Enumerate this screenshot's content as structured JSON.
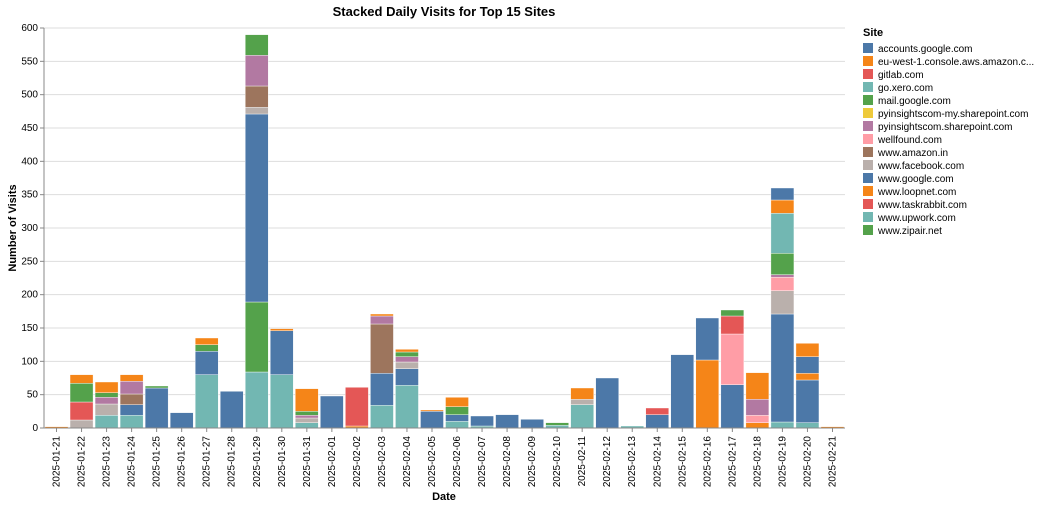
{
  "chart_data": {
    "type": "bar",
    "stacked": true,
    "title": "Stacked Daily Visits for Top 15 Sites",
    "xlabel": "Date",
    "ylabel": "Number of Visits",
    "ylim": [
      0,
      600
    ],
    "yticks": [
      0,
      50,
      100,
      150,
      200,
      250,
      300,
      350,
      400,
      450,
      500,
      550,
      600
    ],
    "grid": true,
    "legend": {
      "title": "Site",
      "placement": "right"
    },
    "categories": [
      "2025-01-21",
      "2025-01-22",
      "2025-01-23",
      "2025-01-24",
      "2025-01-25",
      "2025-01-26",
      "2025-01-27",
      "2025-01-28",
      "2025-01-29",
      "2025-01-30",
      "2025-01-31",
      "2025-02-01",
      "2025-02-02",
      "2025-02-03",
      "2025-02-04",
      "2025-02-05",
      "2025-02-06",
      "2025-02-07",
      "2025-02-08",
      "2025-02-09",
      "2025-02-10",
      "2025-02-11",
      "2025-02-12",
      "2025-02-13",
      "2025-02-14",
      "2025-02-15",
      "2025-02-16",
      "2025-02-17",
      "2025-02-18",
      "2025-02-19",
      "2025-02-20",
      "2025-02-21"
    ],
    "series": [
      {
        "name": "www.upwork.com",
        "color": "#72b7b2",
        "values": [
          0,
          0,
          19,
          19,
          0,
          0,
          80,
          0,
          84,
          80,
          8,
          0,
          0,
          34,
          64,
          0,
          10,
          3,
          0,
          0,
          4,
          35,
          0,
          3,
          0,
          0,
          0,
          0,
          0,
          9,
          8,
          0
        ]
      },
      {
        "name": "www.zipair.net",
        "color": "#54a24b",
        "values": [
          0,
          0,
          0,
          0,
          0,
          0,
          0,
          0,
          105,
          0,
          0,
          0,
          0,
          0,
          0,
          0,
          0,
          0,
          0,
          0,
          0,
          0,
          0,
          0,
          0,
          0,
          0,
          0,
          0,
          0,
          0,
          0
        ]
      },
      {
        "name": "www.loopnet.com",
        "color": "#f58518",
        "values": [
          2,
          0,
          0,
          0,
          0,
          0,
          0,
          0,
          0,
          0,
          0,
          0,
          3,
          0,
          0,
          0,
          0,
          0,
          0,
          0,
          0,
          0,
          0,
          0,
          0,
          0,
          0,
          0,
          0,
          0,
          0,
          0
        ]
      },
      {
        "name": "www.google.com",
        "color": "#4c78a8",
        "values": [
          0,
          0,
          0,
          0,
          60,
          23,
          35,
          55,
          282,
          66,
          0,
          48,
          0,
          48,
          25,
          25,
          10,
          15,
          20,
          13,
          0,
          0,
          75,
          0,
          20,
          110,
          0,
          65,
          0,
          162,
          64,
          0
        ]
      },
      {
        "name": "www.facebook.com",
        "color": "#bab0ac",
        "values": [
          0,
          12,
          17,
          0,
          0,
          0,
          0,
          0,
          10,
          0,
          7,
          0,
          0,
          0,
          10,
          0,
          0,
          0,
          0,
          0,
          0,
          8,
          0,
          0,
          0,
          0,
          0,
          0,
          0,
          35,
          0,
          0
        ]
      },
      {
        "name": "eu-west-1.console.aws.amazon.c...",
        "color": "#f58518",
        "values": [
          0,
          0,
          0,
          0,
          0,
          0,
          0,
          0,
          0,
          0,
          0,
          0,
          0,
          0,
          0,
          0,
          0,
          0,
          0,
          0,
          0,
          0,
          0,
          0,
          0,
          0,
          102,
          0,
          8,
          0,
          10,
          0
        ]
      },
      {
        "name": "accounts.google.com",
        "color": "#4c78a8",
        "values": [
          0,
          0,
          0,
          16,
          0,
          0,
          0,
          0,
          0,
          0,
          0,
          0,
          0,
          0,
          0,
          0,
          0,
          0,
          0,
          0,
          0,
          0,
          0,
          0,
          0,
          0,
          63,
          0,
          0,
          0,
          25,
          0
        ]
      },
      {
        "name": "pyinsightscom-my.sharepoint.com",
        "color": "#eeca3b",
        "values": [
          0,
          0,
          0,
          0,
          0,
          0,
          0,
          0,
          0,
          0,
          0,
          0,
          0,
          0,
          0,
          0,
          0,
          0,
          0,
          0,
          0,
          0,
          0,
          0,
          0,
          0,
          0,
          0,
          0,
          0,
          0,
          0
        ]
      },
      {
        "name": "wellfound.com",
        "color": "#ff9da6",
        "values": [
          0,
          0,
          0,
          0,
          0,
          0,
          0,
          0,
          0,
          0,
          0,
          0,
          0,
          0,
          0,
          0,
          0,
          0,
          0,
          0,
          0,
          0,
          0,
          0,
          0,
          0,
          0,
          76,
          11,
          20,
          0,
          0
        ]
      },
      {
        "name": "gitlab.com",
        "color": "#e45756",
        "values": [
          0,
          0,
          0,
          0,
          0,
          0,
          0,
          0,
          0,
          0,
          0,
          0,
          0,
          0,
          0,
          0,
          0,
          0,
          0,
          0,
          0,
          0,
          0,
          0,
          0,
          0,
          0,
          0,
          0,
          0,
          0,
          0
        ]
      },
      {
        "name": "www.taskrabbit.com",
        "color": "#e45756",
        "values": [
          0,
          27,
          0,
          0,
          0,
          0,
          0,
          0,
          0,
          0,
          0,
          0,
          58,
          0,
          0,
          0,
          0,
          0,
          0,
          0,
          0,
          0,
          0,
          0,
          10,
          0,
          0,
          27,
          0,
          0,
          0,
          0
        ]
      },
      {
        "name": "www.amazon.in",
        "color": "#9d755d",
        "values": [
          0,
          0,
          0,
          16,
          0,
          0,
          0,
          0,
          32,
          0,
          0,
          0,
          0,
          74,
          0,
          0,
          0,
          0,
          0,
          0,
          0,
          0,
          0,
          0,
          0,
          0,
          0,
          0,
          0,
          0,
          0,
          0
        ]
      },
      {
        "name": "pyinsightscom.sharepoint.com",
        "color": "#b279a2",
        "values": [
          0,
          0,
          10,
          19,
          0,
          0,
          0,
          0,
          46,
          0,
          4,
          0,
          0,
          12,
          8,
          0,
          0,
          0,
          0,
          0,
          0,
          0,
          0,
          0,
          0,
          0,
          0,
          0,
          24,
          4,
          0,
          0
        ]
      },
      {
        "name": "mail.google.com",
        "color": "#54a24b",
        "values": [
          0,
          28,
          7,
          0,
          3,
          0,
          10,
          0,
          31,
          0,
          6,
          0,
          0,
          0,
          7,
          0,
          12,
          0,
          0,
          0,
          4,
          0,
          0,
          0,
          0,
          0,
          0,
          9,
          0,
          32,
          0,
          0
        ]
      },
      {
        "name": "go.xero.com",
        "color": "#72b7b2",
        "values": [
          0,
          0,
          0,
          0,
          0,
          0,
          0,
          0,
          0,
          0,
          0,
          0,
          0,
          0,
          0,
          0,
          0,
          0,
          0,
          0,
          0,
          0,
          0,
          0,
          0,
          0,
          0,
          0,
          0,
          60,
          0,
          0
        ]
      },
      {
        "name": "www.loopnet.com",
        "color": "#f58518",
        "values": [
          0,
          13,
          16,
          10,
          0,
          0,
          10,
          0,
          0,
          3,
          34,
          0,
          0,
          3,
          4,
          2,
          14,
          0,
          0,
          0,
          0,
          17,
          0,
          0,
          0,
          0,
          0,
          0,
          40,
          20,
          20,
          2
        ]
      },
      {
        "name": "www.google.com",
        "color": "#4c78a8",
        "values": [
          0,
          0,
          0,
          0,
          0,
          0,
          0,
          0,
          0,
          0,
          0,
          0,
          0,
          0,
          0,
          0,
          0,
          0,
          0,
          0,
          0,
          0,
          0,
          0,
          0,
          0,
          0,
          0,
          0,
          18,
          0,
          0
        ]
      }
    ]
  },
  "legend_items": [
    {
      "label": "accounts.google.com",
      "color": "#4c78a8"
    },
    {
      "label": "eu-west-1.console.aws.amazon.c...",
      "color": "#f58518"
    },
    {
      "label": "gitlab.com",
      "color": "#e45756"
    },
    {
      "label": "go.xero.com",
      "color": "#72b7b2"
    },
    {
      "label": "mail.google.com",
      "color": "#54a24b"
    },
    {
      "label": "pyinsightscom-my.sharepoint.com",
      "color": "#eeca3b"
    },
    {
      "label": "pyinsightscom.sharepoint.com",
      "color": "#b279a2"
    },
    {
      "label": "wellfound.com",
      "color": "#ff9da6"
    },
    {
      "label": "www.amazon.in",
      "color": "#9d755d"
    },
    {
      "label": "www.facebook.com",
      "color": "#bab0ac"
    },
    {
      "label": "www.google.com",
      "color": "#4c78a8"
    },
    {
      "label": "www.loopnet.com",
      "color": "#f58518"
    },
    {
      "label": "www.taskrabbit.com",
      "color": "#e45756"
    },
    {
      "label": "www.upwork.com",
      "color": "#72b7b2"
    },
    {
      "label": "www.zipair.net",
      "color": "#54a24b"
    }
  ]
}
